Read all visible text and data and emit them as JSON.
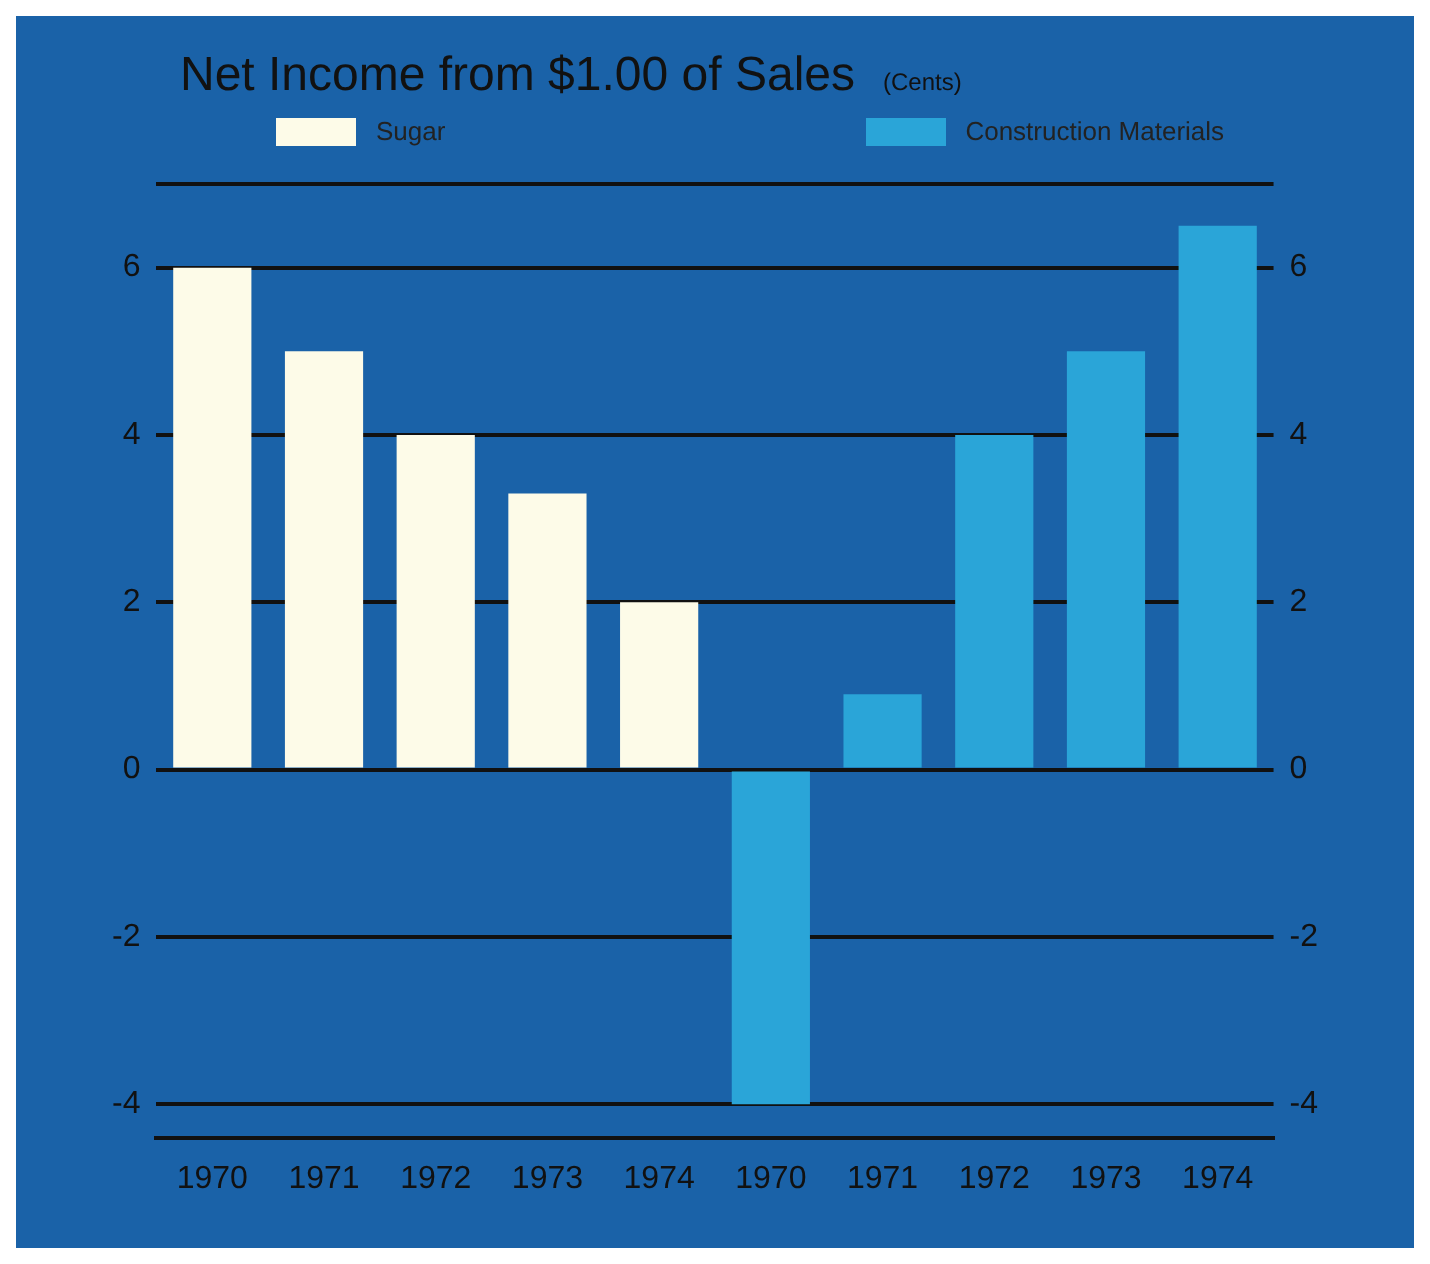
{
  "chart_data": {
    "type": "bar",
    "title": "Net Income from $1.00 of Sales",
    "subtitle": "(Cents)",
    "categories": [
      "1970",
      "1971",
      "1972",
      "1973",
      "1974",
      "1970",
      "1971",
      "1972",
      "1973",
      "1974"
    ],
    "series": [
      {
        "name": "Sugar",
        "color": "#fdfbe8",
        "values": [
          6,
          5,
          4,
          3.3,
          2,
          null,
          null,
          null,
          null,
          null
        ]
      },
      {
        "name": "Construction Materials",
        "color": "#2aa5d8",
        "values": [
          null,
          null,
          null,
          null,
          null,
          -4,
          0.9,
          4,
          5,
          6.5
        ]
      }
    ],
    "ylim": [
      -4.4,
      7
    ],
    "yticks": [
      -4,
      -2,
      0,
      2,
      4,
      6,
      {
        "value": 7,
        "label": null
      }
    ],
    "y2lim": [
      -4.4,
      7
    ],
    "y2ticks": [
      -4,
      -2,
      0,
      2,
      4,
      6
    ],
    "grid": "y",
    "legend": "top"
  }
}
